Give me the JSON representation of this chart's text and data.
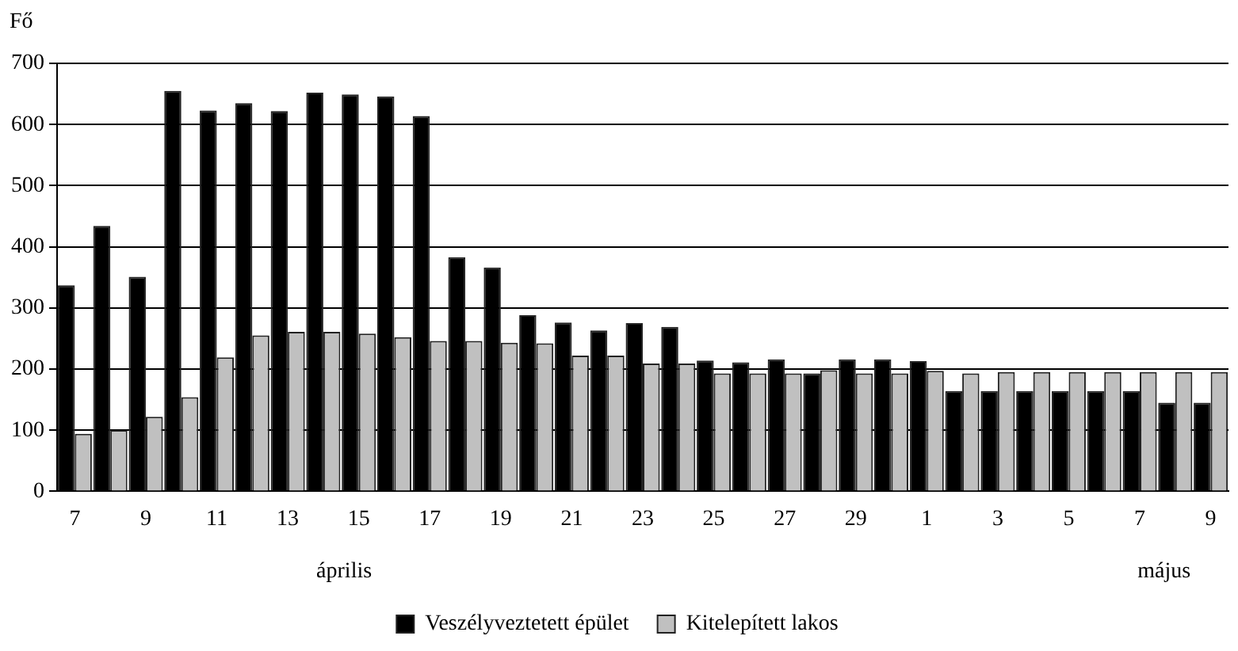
{
  "chart_data": {
    "type": "bar",
    "ylabel": "Fő",
    "categories": [
      "7",
      null,
      "9",
      null,
      "11",
      null,
      "13",
      null,
      "15",
      null,
      "17",
      null,
      "19",
      null,
      "21",
      null,
      "23",
      null,
      "25",
      null,
      "27",
      null,
      "29",
      null,
      "1",
      null,
      "3",
      null,
      "5",
      null,
      "7",
      null,
      "9"
    ],
    "series": [
      {
        "name": "Veszélyveztetett épület",
        "color": "#000000",
        "values": [
          337,
          434,
          351,
          655,
          623,
          635,
          622,
          652,
          649,
          646,
          614,
          383,
          366,
          288,
          276,
          263,
          275,
          269,
          214,
          211,
          216,
          193,
          216,
          216,
          213,
          164,
          164,
          164,
          164,
          164,
          164,
          145,
          145
        ]
      },
      {
        "name": "Kitelepített lakos",
        "color": "#c0c0c0",
        "values": [
          94,
          100,
          122,
          154,
          219,
          255,
          261,
          261,
          258,
          252,
          246,
          246,
          243,
          242,
          222,
          222,
          209,
          209,
          193,
          193,
          193,
          198,
          193,
          193,
          197,
          193,
          195,
          195,
          195,
          195,
          195,
          195,
          195
        ]
      }
    ],
    "ylim": [
      0,
      700
    ],
    "yticks": [
      0,
      100,
      200,
      300,
      400,
      500,
      600,
      700
    ],
    "grid": "y",
    "legend": "bottom",
    "annotations": [
      "április",
      "május"
    ]
  }
}
